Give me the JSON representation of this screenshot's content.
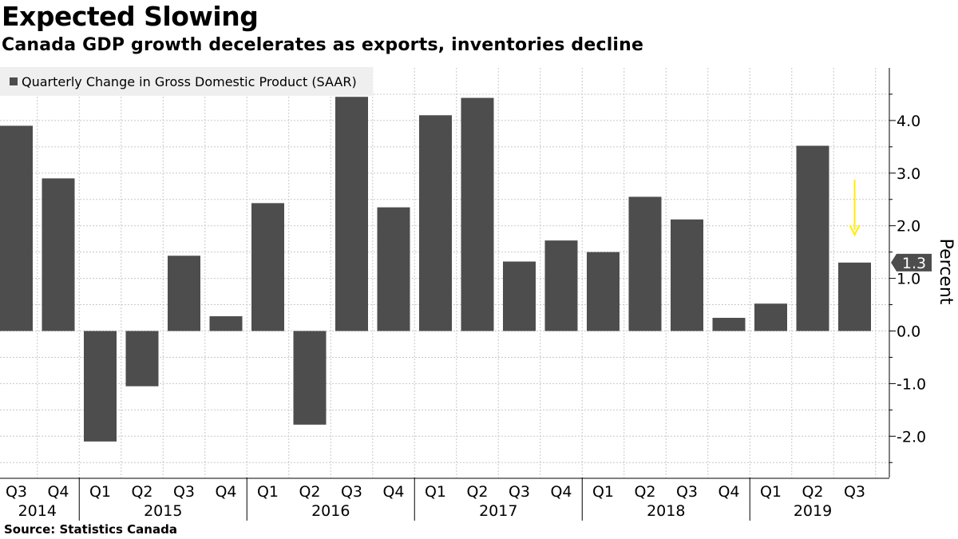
{
  "header": {
    "title": "Expected Slowing",
    "subtitle": "Canada GDP growth decelerates as exports, inventories decline"
  },
  "legend": {
    "label": "Quarterly Change in Gross Domestic Product (SAAR)"
  },
  "source": "Source:  Statistics Canada",
  "colors": {
    "bar": "#4d4d4d",
    "arrow": "#ffee00",
    "label_box": "#4d4d4d",
    "grid": "#c8c8c8"
  },
  "chart_data": {
    "type": "bar",
    "title": "Expected Slowing",
    "subtitle": "Canada GDP growth decelerates as exports, inventories decline",
    "xlabel": "",
    "ylabel": "Percent",
    "ylim": [
      -2.8,
      5.0
    ],
    "yticks": [
      -2.0,
      -1.0,
      0.0,
      1.0,
      2.0,
      3.0,
      4.0
    ],
    "ytick_labels": [
      "-2.0",
      "-1.0",
      "0.0",
      "1.0",
      "2.0",
      "3.0",
      "4.0"
    ],
    "categories": [
      "Q3",
      "Q4",
      "Q1",
      "Q2",
      "Q3",
      "Q4",
      "Q1",
      "Q2",
      "Q3",
      "Q4",
      "Q1",
      "Q2",
      "Q3",
      "Q4",
      "Q1",
      "Q2",
      "Q3",
      "Q4",
      "Q1",
      "Q2",
      "Q3"
    ],
    "years": [
      {
        "label": "2014",
        "start": 0,
        "end": 1
      },
      {
        "label": "2015",
        "start": 2,
        "end": 5
      },
      {
        "label": "2016",
        "start": 6,
        "end": 9
      },
      {
        "label": "2017",
        "start": 10,
        "end": 13
      },
      {
        "label": "2018",
        "start": 14,
        "end": 17
      },
      {
        "label": "2019",
        "start": 18,
        "end": 20
      }
    ],
    "series": [
      {
        "name": "Quarterly Change in Gross Domestic Product (SAAR)",
        "values": [
          3.9,
          2.9,
          -2.1,
          -1.05,
          1.43,
          0.28,
          2.43,
          -1.78,
          4.45,
          2.35,
          4.1,
          4.43,
          1.32,
          1.72,
          1.5,
          2.55,
          2.12,
          0.25,
          0.52,
          3.52,
          1.3
        ]
      }
    ],
    "last_value_label": "1.3",
    "grid": true,
    "legend_position": "top-left"
  }
}
